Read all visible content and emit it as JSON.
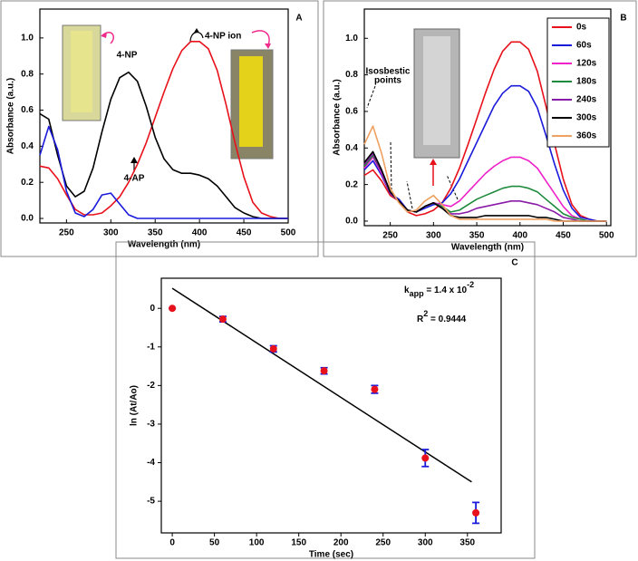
{
  "chart_data": [
    {
      "type": "line",
      "panel_label": "A",
      "xlabel": "Wavelength (nm)",
      "ylabel": "Absorbance (a.u.)",
      "x": [
        220,
        230,
        240,
        250,
        260,
        270,
        280,
        290,
        300,
        310,
        320,
        330,
        340,
        350,
        360,
        370,
        380,
        390,
        400,
        410,
        420,
        430,
        440,
        450,
        460,
        470,
        480,
        490,
        500
      ],
      "series": [
        {
          "color": "#e8101a",
          "values": [
            0.29,
            0.28,
            0.22,
            0.13,
            0.05,
            0.02,
            0.02,
            0.03,
            0.07,
            0.12,
            0.2,
            0.3,
            0.42,
            0.56,
            0.7,
            0.83,
            0.93,
            0.98,
            0.98,
            0.94,
            0.82,
            0.63,
            0.42,
            0.23,
            0.09,
            0.03,
            0.01,
            0,
            0
          ]
        },
        {
          "color": "#000000",
          "values": [
            0.58,
            0.55,
            0.35,
            0.18,
            0.12,
            0.15,
            0.28,
            0.48,
            0.66,
            0.78,
            0.81,
            0.76,
            0.62,
            0.45,
            0.33,
            0.27,
            0.25,
            0.25,
            0.24,
            0.22,
            0.18,
            0.12,
            0.06,
            0.03,
            0.01,
            0,
            0,
            0,
            0
          ]
        },
        {
          "color": "#1a1adb",
          "values": [
            0.35,
            0.51,
            0.38,
            0.15,
            0.03,
            0.01,
            0.05,
            0.13,
            0.14,
            0.08,
            0.02,
            0,
            0,
            0,
            0,
            0,
            0,
            0,
            0,
            0,
            0,
            0,
            0,
            0,
            0,
            0,
            0,
            0,
            0
          ]
        }
      ],
      "annotations": [
        "4-NP",
        "4-AP",
        "4-NP ion"
      ],
      "xlim": [
        220,
        500
      ],
      "ylim": [
        -0.025,
        1.16
      ],
      "xticks": [
        250,
        300,
        350,
        400,
        450,
        500
      ],
      "yticks": [
        {
          "value": 0,
          "label": "0.0"
        },
        0.2,
        0.4,
        0.6,
        0.8,
        {
          "value": 1,
          "label": "1.0"
        }
      ]
    },
    {
      "type": "line",
      "panel_label": "B",
      "xlabel": "Wavelength (nm)",
      "ylabel": "Absorbance (a.u.)",
      "x": [
        220,
        230,
        240,
        250,
        260,
        270,
        280,
        290,
        300,
        310,
        320,
        330,
        340,
        350,
        360,
        370,
        380,
        390,
        400,
        410,
        420,
        430,
        440,
        450,
        460,
        470,
        480,
        490,
        500
      ],
      "series": [
        {
          "name": "0s",
          "color": "#e8101a",
          "values": [
            0.25,
            0.28,
            0.22,
            0.14,
            0.11,
            0.05,
            0.03,
            0.04,
            0.06,
            0.1,
            0.18,
            0.29,
            0.42,
            0.56,
            0.7,
            0.83,
            0.93,
            0.98,
            0.98,
            0.94,
            0.82,
            0.63,
            0.42,
            0.23,
            0.09,
            0.03,
            0.01,
            0,
            0
          ]
        },
        {
          "name": "60s",
          "color": "#1a1adb",
          "values": [
            0.28,
            0.33,
            0.25,
            0.15,
            0.12,
            0.06,
            0.05,
            0.07,
            0.09,
            0.1,
            0.15,
            0.23,
            0.33,
            0.43,
            0.53,
            0.63,
            0.7,
            0.74,
            0.74,
            0.71,
            0.62,
            0.47,
            0.31,
            0.17,
            0.07,
            0.02,
            0.01,
            0,
            0
          ]
        },
        {
          "name": "120s",
          "color": "#ee22c8",
          "values": [
            0.29,
            0.35,
            0.26,
            0.15,
            0.11,
            0.06,
            0.05,
            0.08,
            0.1,
            0.09,
            0.08,
            0.11,
            0.16,
            0.21,
            0.26,
            0.3,
            0.33,
            0.35,
            0.35,
            0.33,
            0.29,
            0.22,
            0.15,
            0.08,
            0.03,
            0.01,
            0,
            0,
            0
          ]
        },
        {
          "name": "180s",
          "color": "#1e8a3c",
          "values": [
            0.3,
            0.36,
            0.27,
            0.15,
            0.11,
            0.06,
            0.05,
            0.08,
            0.1,
            0.08,
            0.05,
            0.06,
            0.09,
            0.12,
            0.14,
            0.16,
            0.18,
            0.19,
            0.19,
            0.18,
            0.16,
            0.12,
            0.08,
            0.04,
            0.02,
            0.01,
            0,
            0,
            0
          ]
        },
        {
          "name": "240s",
          "color": "#8a1aa8",
          "values": [
            0.31,
            0.37,
            0.27,
            0.15,
            0.11,
            0.06,
            0.05,
            0.08,
            0.1,
            0.07,
            0.04,
            0.04,
            0.05,
            0.07,
            0.08,
            0.09,
            0.1,
            0.11,
            0.11,
            0.1,
            0.09,
            0.07,
            0.05,
            0.02,
            0.01,
            0,
            0,
            0,
            0
          ]
        },
        {
          "name": "300s",
          "color": "#000000",
          "values": [
            0.32,
            0.38,
            0.28,
            0.16,
            0.11,
            0.06,
            0.05,
            0.08,
            0.1,
            0.07,
            0.03,
            0.02,
            0.02,
            0.02,
            0.03,
            0.03,
            0.03,
            0.03,
            0.03,
            0.03,
            0.02,
            0.02,
            0.01,
            0,
            0,
            0,
            0,
            0,
            0
          ]
        },
        {
          "name": "360s",
          "color": "#f0a060",
          "values": [
            0.42,
            0.52,
            0.37,
            0.18,
            0.1,
            0.05,
            0.06,
            0.11,
            0.14,
            0.09,
            0.03,
            0.01,
            0.01,
            0.01,
            0.01,
            0.01,
            0.01,
            0.01,
            0.01,
            0.01,
            0.01,
            0.01,
            0,
            0,
            0,
            0,
            0,
            0,
            0
          ]
        }
      ],
      "legend": "upper right",
      "annotations": [
        "Isosbestic",
        "points"
      ],
      "xlim": [
        220,
        505
      ],
      "ylim": [
        -0.025,
        1.16
      ],
      "xticks": [
        250,
        300,
        350,
        400,
        450,
        500
      ],
      "yticks": [
        {
          "value": 0,
          "label": "0.0"
        },
        0.2,
        0.4,
        0.6,
        0.8,
        {
          "value": 1,
          "label": "1.0"
        }
      ]
    },
    {
      "type": "scatter",
      "panel_label": "C",
      "xlabel": "Time (sec)",
      "ylabel": "ln (At/Ao)",
      "x": [
        0,
        60,
        120,
        180,
        240,
        300,
        360
      ],
      "values": [
        0,
        -0.28,
        -1.05,
        -1.62,
        -2.1,
        -3.88,
        -5.3
      ],
      "errors": [
        0,
        0.07,
        0.08,
        0.08,
        0.1,
        0.22,
        0.27
      ],
      "color": "#e8101a",
      "error_color": "#1a1adb",
      "fit": {
        "x": [
          0,
          355
        ],
        "y": [
          0.52,
          -4.5
        ],
        "color": "#000000"
      },
      "annotations": [
        [
          "k",
          "app",
          " = 1.4 x 10",
          "-2"
        ],
        [
          "R",
          "2",
          " = 0.9444"
        ]
      ],
      "xlim": [
        -13,
        390
      ],
      "ylim": [
        -5.82,
        0.78
      ],
      "xticks": [
        0,
        50,
        100,
        150,
        200,
        250,
        300,
        350
      ],
      "yticks": [
        -5,
        -4,
        -3,
        -2,
        -1,
        0
      ]
    }
  ]
}
